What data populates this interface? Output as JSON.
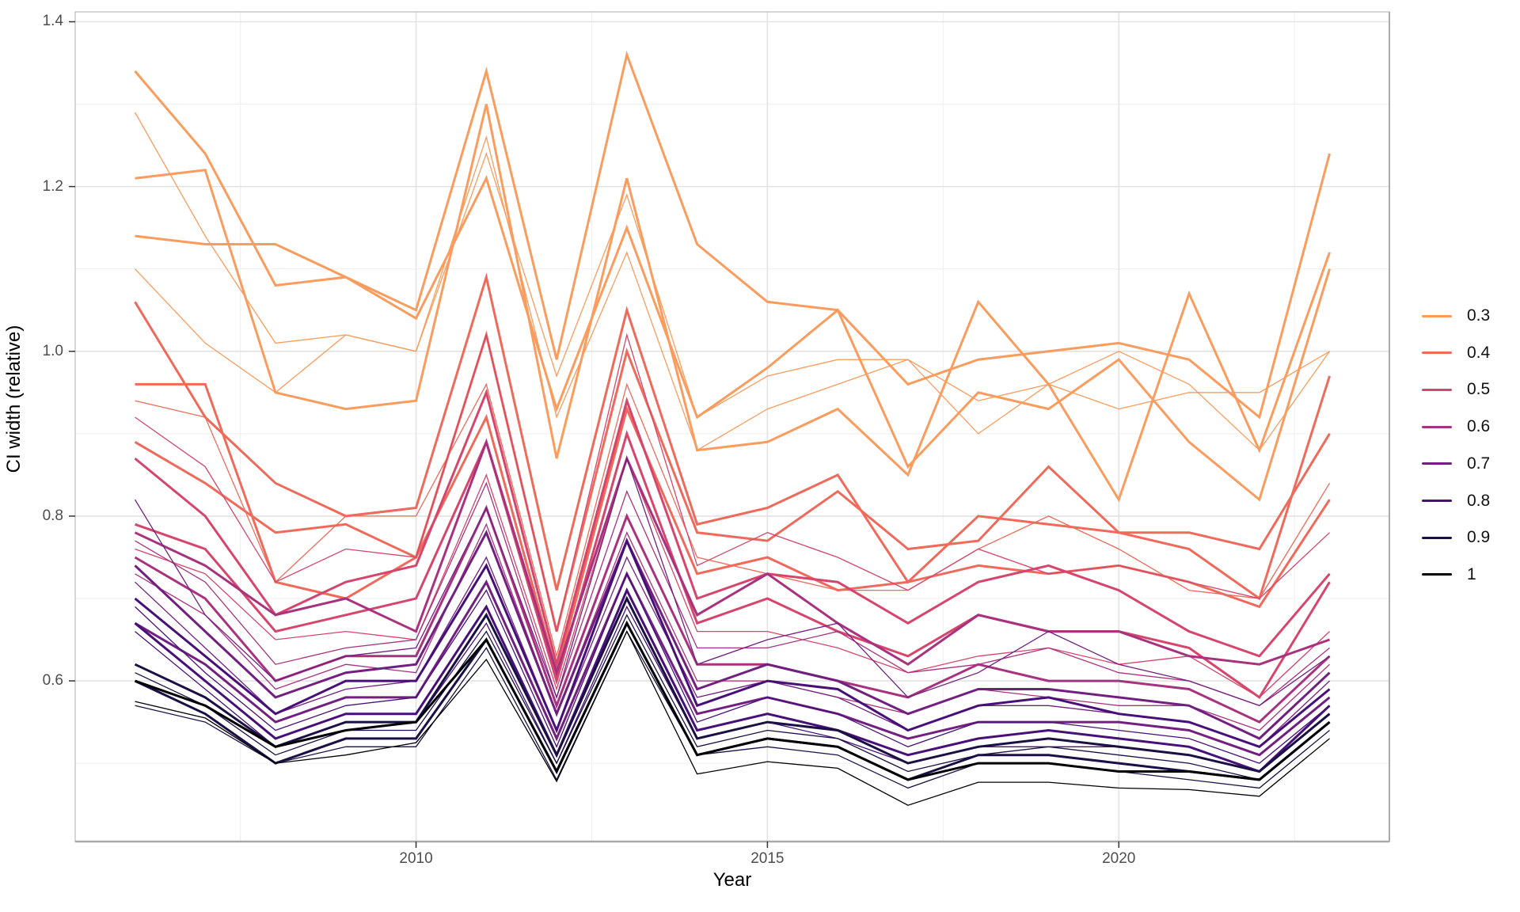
{
  "chart_data": {
    "type": "line",
    "title": "",
    "xlabel": "Year",
    "ylabel": "CI width (relative)",
    "xlim": [
      2005.15,
      2023.85
    ],
    "ylim": [
      0.405,
      1.412
    ],
    "grid": "on",
    "x_ticks": [
      {
        "value": 2010,
        "label": "2010"
      },
      {
        "value": 2015,
        "label": "2015"
      },
      {
        "value": 2020,
        "label": "2020"
      }
    ],
    "x_minor": [
      2007.5,
      2012.5,
      2017.5,
      2022.5
    ],
    "y_ticks": [
      {
        "value": 1.4,
        "label": "1.4"
      },
      {
        "value": 1.2,
        "label": "1.2"
      },
      {
        "value": 1.0,
        "label": "1.0"
      },
      {
        "value": 0.8,
        "label": "0.8"
      },
      {
        "value": 0.6,
        "label": "0.6"
      }
    ],
    "y_minor": [
      1.3,
      1.1,
      0.9,
      0.7,
      0.5
    ],
    "years": [
      2006,
      2007,
      2008,
      2009,
      2010,
      2011,
      2012,
      2013,
      2014,
      2015,
      2016,
      2017,
      2018,
      2019,
      2020,
      2021,
      2022,
      2023
    ],
    "legend": {
      "position": "right",
      "title": "",
      "entries": [
        {
          "label": "0.3",
          "color": "#FA9C5D"
        },
        {
          "label": "0.4",
          "color": "#EF6A5A"
        },
        {
          "label": "0.5",
          "color": "#D6456C"
        },
        {
          "label": "0.6",
          "color": "#A8327D"
        },
        {
          "label": "0.7",
          "color": "#71207F"
        },
        {
          "label": "0.8",
          "color": "#471078"
        },
        {
          "label": "0.9",
          "color": "#1B1044"
        },
        {
          "label": "1",
          "color": "#000004"
        }
      ]
    },
    "series": [
      {
        "group": "0.3",
        "color": "#FA9C5D",
        "width": 3,
        "values": [
          1.34,
          1.24,
          1.08,
          1.09,
          1.05,
          1.34,
          0.99,
          1.36,
          1.13,
          1.06,
          1.05,
          0.96,
          0.99,
          1.0,
          1.01,
          0.99,
          0.92,
          1.24
        ]
      },
      {
        "group": "0.3",
        "color": "#FA9C5D",
        "width": 1.3,
        "values": [
          1.29,
          1.14,
          1.01,
          1.02,
          1.0,
          1.24,
          0.97,
          1.19,
          0.92,
          0.97,
          0.99,
          0.99,
          0.94,
          0.96,
          1.0,
          0.96,
          0.88,
          1.0
        ]
      },
      {
        "group": "0.3",
        "color": "#FA9C5D",
        "width": 3,
        "values": [
          1.21,
          1.22,
          0.95,
          0.93,
          0.94,
          1.3,
          0.87,
          1.21,
          0.88,
          0.89,
          0.93,
          0.85,
          1.06,
          0.96,
          0.82,
          1.07,
          0.88,
          1.12
        ]
      },
      {
        "group": "0.3",
        "color": "#FA9C5D",
        "width": 3,
        "values": [
          1.14,
          1.13,
          1.13,
          1.09,
          1.04,
          1.21,
          0.93,
          1.15,
          0.92,
          0.98,
          1.05,
          0.86,
          0.95,
          0.93,
          0.99,
          0.89,
          0.82,
          1.1
        ]
      },
      {
        "group": "0.3",
        "color": "#FA9C5D",
        "width": 1.3,
        "values": [
          1.1,
          1.01,
          0.95,
          1.02,
          1.0,
          1.26,
          0.92,
          1.12,
          0.88,
          0.93,
          0.96,
          0.99,
          0.9,
          0.96,
          0.93,
          0.95,
          0.95,
          1.0
        ]
      },
      {
        "group": "0.4",
        "color": "#EF6A5A",
        "width": 3,
        "values": [
          1.06,
          0.92,
          0.84,
          0.8,
          0.81,
          1.09,
          0.71,
          1.05,
          0.79,
          0.81,
          0.85,
          0.72,
          0.8,
          0.79,
          0.78,
          0.76,
          0.7,
          0.97
        ]
      },
      {
        "group": "0.4",
        "color": "#EF6A5A",
        "width": 3,
        "values": [
          0.96,
          0.96,
          0.72,
          0.7,
          0.75,
          1.02,
          0.66,
          1.0,
          0.78,
          0.77,
          0.83,
          0.76,
          0.77,
          0.86,
          0.78,
          0.78,
          0.76,
          0.9
        ]
      },
      {
        "group": "0.4",
        "color": "#EF6A5A",
        "width": 1.3,
        "values": [
          0.94,
          0.92,
          0.72,
          0.8,
          0.8,
          0.96,
          0.63,
          0.96,
          0.75,
          0.73,
          0.71,
          0.71,
          0.76,
          0.8,
          0.76,
          0.71,
          0.7,
          0.84
        ]
      },
      {
        "group": "0.4",
        "color": "#EF6A5A",
        "width": 3,
        "values": [
          0.89,
          0.84,
          0.78,
          0.79,
          0.75,
          0.92,
          0.61,
          0.93,
          0.73,
          0.75,
          0.71,
          0.72,
          0.74,
          0.73,
          0.74,
          0.72,
          0.69,
          0.82
        ]
      },
      {
        "group": "0.5",
        "color": "#D6456C",
        "width": 1.3,
        "values": [
          0.92,
          0.86,
          0.72,
          0.76,
          0.75,
          1.02,
          0.66,
          1.02,
          0.74,
          0.78,
          0.75,
          0.71,
          0.76,
          0.73,
          0.74,
          0.72,
          0.7,
          0.78
        ]
      },
      {
        "group": "0.5",
        "color": "#D6456C",
        "width": 3,
        "values": [
          0.87,
          0.8,
          0.68,
          0.72,
          0.74,
          0.95,
          0.62,
          0.94,
          0.7,
          0.73,
          0.72,
          0.67,
          0.72,
          0.74,
          0.71,
          0.66,
          0.63,
          0.73
        ]
      },
      {
        "group": "0.5",
        "color": "#D6456C",
        "width": 3,
        "values": [
          0.79,
          0.76,
          0.66,
          0.68,
          0.7,
          0.89,
          0.6,
          0.9,
          0.67,
          0.7,
          0.66,
          0.63,
          0.68,
          0.66,
          0.66,
          0.64,
          0.58,
          0.72
        ]
      },
      {
        "group": "0.5",
        "color": "#D6456C",
        "width": 1.3,
        "values": [
          0.76,
          0.73,
          0.65,
          0.66,
          0.65,
          0.85,
          0.59,
          0.87,
          0.66,
          0.66,
          0.64,
          0.61,
          0.63,
          0.64,
          0.62,
          0.63,
          0.58,
          0.66
        ]
      },
      {
        "group": "0.6",
        "color": "#A8327D",
        "width": 3,
        "values": [
          0.78,
          0.74,
          0.68,
          0.7,
          0.66,
          0.89,
          0.61,
          0.87,
          0.68,
          0.73,
          0.67,
          0.62,
          0.68,
          0.66,
          0.66,
          0.63,
          0.62,
          0.65
        ]
      },
      {
        "group": "0.6",
        "color": "#A8327D",
        "width": 1.3,
        "values": [
          0.77,
          0.72,
          0.62,
          0.64,
          0.65,
          0.84,
          0.58,
          0.83,
          0.64,
          0.64,
          0.66,
          0.61,
          0.62,
          0.64,
          0.61,
          0.6,
          0.57,
          0.64
        ]
      },
      {
        "group": "0.6",
        "color": "#A8327D",
        "width": 3,
        "values": [
          0.75,
          0.7,
          0.6,
          0.63,
          0.63,
          0.81,
          0.57,
          0.8,
          0.62,
          0.62,
          0.6,
          0.58,
          0.62,
          0.6,
          0.6,
          0.59,
          0.55,
          0.63
        ]
      },
      {
        "group": "0.6",
        "color": "#A8327D",
        "width": 1.3,
        "values": [
          0.73,
          0.68,
          0.59,
          0.62,
          0.61,
          0.79,
          0.56,
          0.78,
          0.6,
          0.6,
          0.58,
          0.56,
          0.59,
          0.58,
          0.57,
          0.57,
          0.54,
          0.62
        ]
      },
      {
        "group": "0.7",
        "color": "#71207F",
        "width": 1.3,
        "values": [
          0.82,
          0.68,
          0.6,
          0.63,
          0.64,
          0.81,
          0.58,
          0.87,
          0.62,
          0.65,
          0.67,
          0.58,
          0.61,
          0.66,
          0.62,
          0.6,
          0.57,
          0.63
        ]
      },
      {
        "group": "0.7",
        "color": "#71207F",
        "width": 3,
        "values": [
          0.74,
          0.66,
          0.58,
          0.61,
          0.62,
          0.78,
          0.56,
          0.77,
          0.59,
          0.62,
          0.6,
          0.56,
          0.59,
          0.59,
          0.58,
          0.57,
          0.53,
          0.61
        ]
      },
      {
        "group": "0.7",
        "color": "#71207F",
        "width": 1.3,
        "values": [
          0.72,
          0.64,
          0.56,
          0.59,
          0.6,
          0.75,
          0.54,
          0.75,
          0.58,
          0.6,
          0.58,
          0.54,
          0.57,
          0.57,
          0.56,
          0.55,
          0.52,
          0.6
        ]
      },
      {
        "group": "0.7",
        "color": "#71207F",
        "width": 3,
        "values": [
          0.67,
          0.62,
          0.55,
          0.58,
          0.58,
          0.72,
          0.53,
          0.73,
          0.56,
          0.58,
          0.56,
          0.53,
          0.55,
          0.55,
          0.55,
          0.54,
          0.51,
          0.58
        ]
      },
      {
        "group": "0.8",
        "color": "#471078",
        "width": 3,
        "values": [
          0.7,
          0.63,
          0.56,
          0.6,
          0.6,
          0.74,
          0.54,
          0.77,
          0.57,
          0.6,
          0.59,
          0.54,
          0.57,
          0.58,
          0.56,
          0.55,
          0.52,
          0.59
        ]
      },
      {
        "group": "0.8",
        "color": "#471078",
        "width": 1.3,
        "values": [
          0.69,
          0.61,
          0.54,
          0.57,
          0.58,
          0.71,
          0.52,
          0.73,
          0.55,
          0.58,
          0.56,
          0.52,
          0.55,
          0.55,
          0.54,
          0.53,
          0.5,
          0.57
        ]
      },
      {
        "group": "0.8",
        "color": "#471078",
        "width": 3,
        "values": [
          0.67,
          0.6,
          0.53,
          0.56,
          0.56,
          0.69,
          0.51,
          0.71,
          0.54,
          0.56,
          0.54,
          0.51,
          0.53,
          0.54,
          0.53,
          0.52,
          0.49,
          0.57
        ]
      },
      {
        "group": "0.8",
        "color": "#471078",
        "width": 1.3,
        "values": [
          0.66,
          0.59,
          0.52,
          0.55,
          0.55,
          0.67,
          0.5,
          0.69,
          0.53,
          0.55,
          0.53,
          0.5,
          0.52,
          0.52,
          0.52,
          0.51,
          0.49,
          0.56
        ]
      },
      {
        "group": "0.9",
        "color": "#1B1044",
        "width": 3,
        "values": [
          0.62,
          0.58,
          0.52,
          0.55,
          0.55,
          0.68,
          0.51,
          0.7,
          0.53,
          0.55,
          0.54,
          0.5,
          0.52,
          0.53,
          0.52,
          0.51,
          0.49,
          0.56
        ]
      },
      {
        "group": "0.9",
        "color": "#1B1044",
        "width": 1.3,
        "values": [
          0.61,
          0.57,
          0.51,
          0.54,
          0.54,
          0.66,
          0.5,
          0.68,
          0.52,
          0.54,
          0.53,
          0.49,
          0.51,
          0.52,
          0.51,
          0.5,
          0.48,
          0.55
        ]
      },
      {
        "group": "0.9",
        "color": "#1B1044",
        "width": 3,
        "values": [
          0.6,
          0.56,
          0.5,
          0.53,
          0.53,
          0.65,
          0.49,
          0.67,
          0.51,
          0.53,
          0.52,
          0.48,
          0.51,
          0.51,
          0.5,
          0.49,
          0.48,
          0.55
        ]
      },
      {
        "group": "0.9",
        "color": "#1B1044",
        "width": 1.3,
        "values": [
          0.57,
          0.55,
          0.5,
          0.52,
          0.52,
          0.64,
          0.48,
          0.66,
          0.51,
          0.52,
          0.51,
          0.47,
          0.5,
          0.5,
          0.49,
          0.48,
          0.47,
          0.54
        ]
      },
      {
        "group": "1",
        "color": "#000004",
        "width": 3,
        "values": [
          0.6,
          0.57,
          0.52,
          0.54,
          0.55,
          0.65,
          0.49,
          0.67,
          0.51,
          0.53,
          0.52,
          0.48,
          0.5,
          0.5,
          0.49,
          0.49,
          0.48,
          0.55
        ]
      },
      {
        "group": "1",
        "color": "#000004",
        "width": 1.3,
        "values": [
          0.575,
          0.555,
          0.5,
          0.51,
          0.525,
          0.626,
          0.478,
          0.66,
          0.487,
          0.502,
          0.494,
          0.449,
          0.477,
          0.477,
          0.47,
          0.468,
          0.46,
          0.53
        ]
      }
    ]
  },
  "style": {
    "background": "#ffffff",
    "grid_major": "#E3E3E3",
    "grid_minor": "#F0F0F0",
    "panel_border": "#C4C4C4",
    "axis_line": "#A9A9A9",
    "tick_mark": "#333333",
    "tick_text": "#4D4D4D",
    "title_text": "#000000"
  }
}
